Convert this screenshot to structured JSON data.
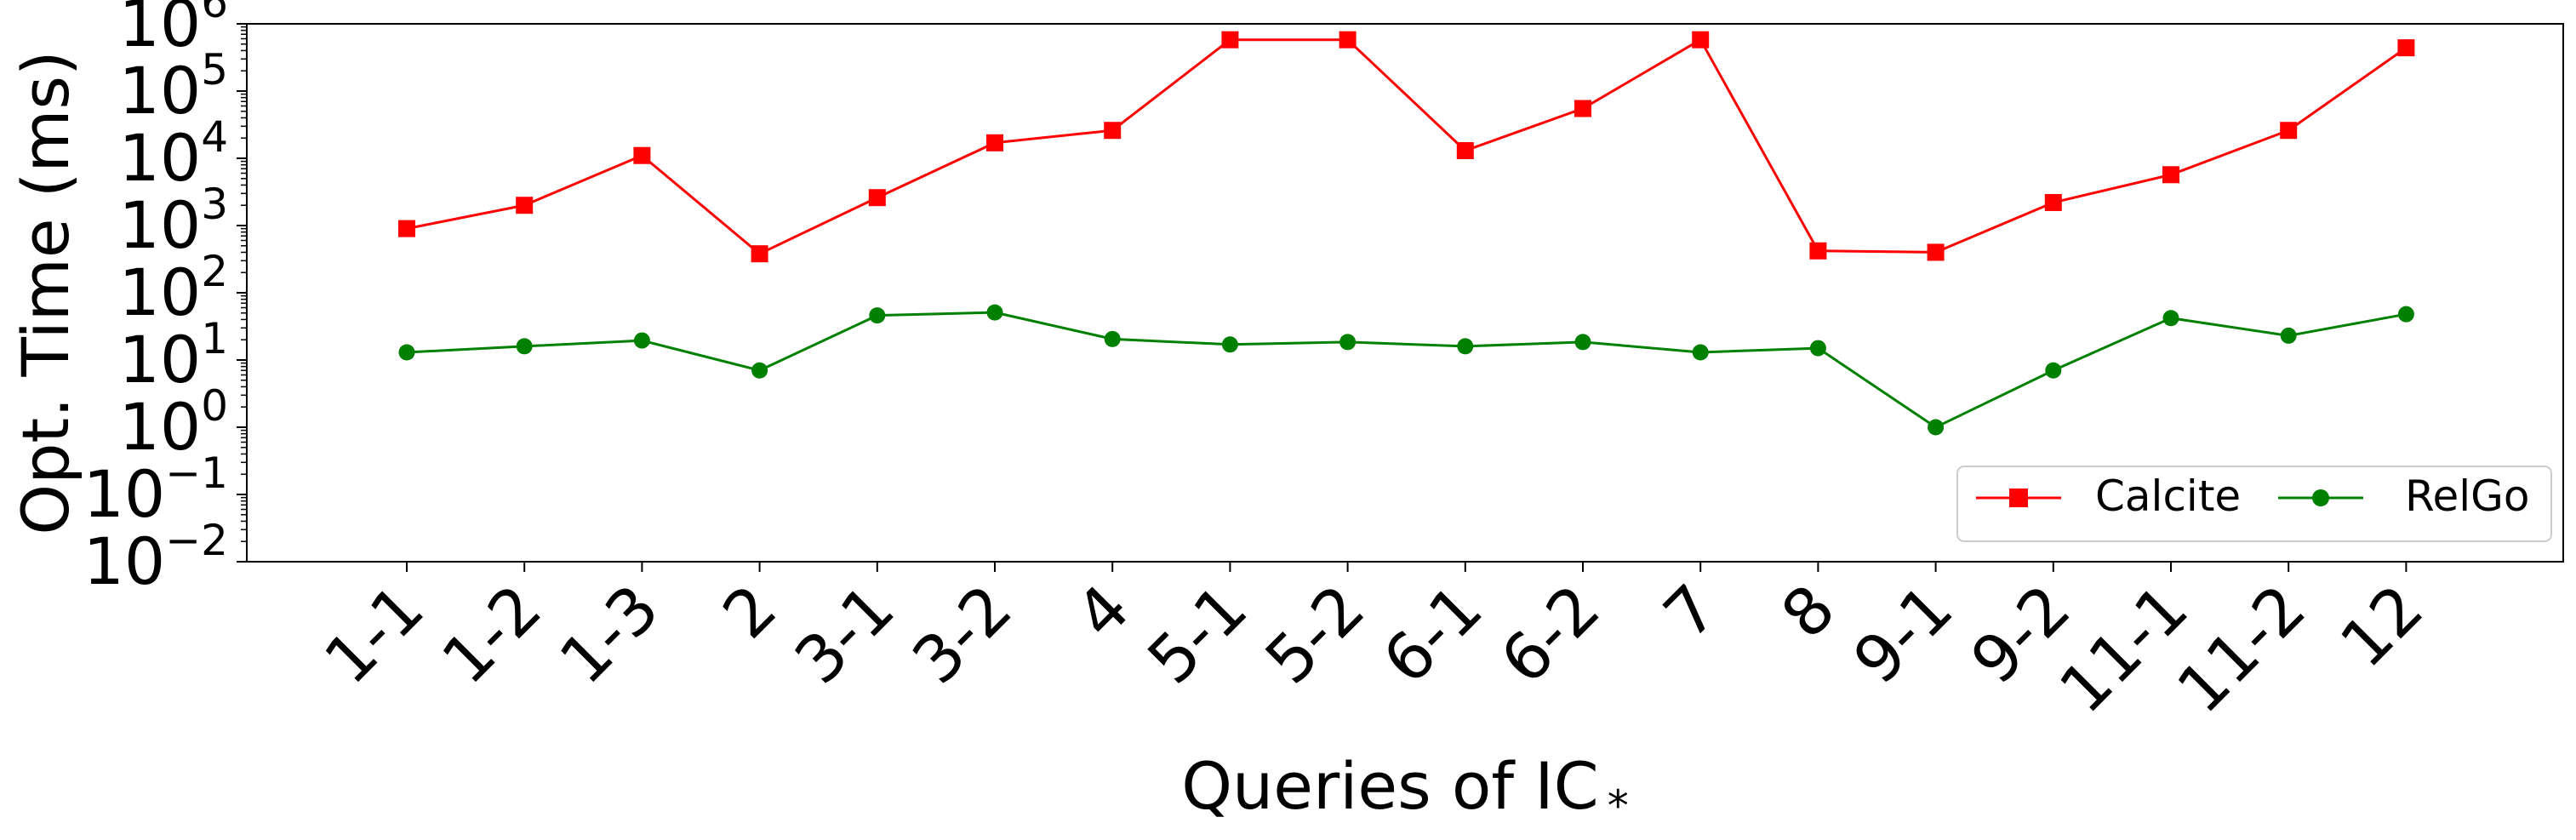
{
  "chart_data": {
    "type": "line",
    "title": "",
    "xlabel": "Queries of IC",
    "xlabel_sub": "*",
    "ylabel": "Opt. Time (ms)",
    "yscale": "log",
    "ylim": [
      0.01,
      1000000
    ],
    "yticks": [
      {
        "value": 0.01,
        "base": "10",
        "exp": "−2"
      },
      {
        "value": 0.1,
        "base": "10",
        "exp": "−1"
      },
      {
        "value": 1,
        "base": "10",
        "exp": "0"
      },
      {
        "value": 10,
        "base": "10",
        "exp": "1"
      },
      {
        "value": 100,
        "base": "10",
        "exp": "2"
      },
      {
        "value": 1000,
        "base": "10",
        "exp": "3"
      },
      {
        "value": 10000,
        "base": "10",
        "exp": "4"
      },
      {
        "value": 100000,
        "base": "10",
        "exp": "5"
      },
      {
        "value": 1000000,
        "base": "10",
        "exp": "6"
      }
    ],
    "categories": [
      "1-1",
      "1-2",
      "1-3",
      "2",
      "3-1",
      "3-2",
      "4",
      "5-1",
      "5-2",
      "6-1",
      "6-2",
      "7",
      "8",
      "9-1",
      "9-2",
      "11-1",
      "11-2",
      "12"
    ],
    "series": [
      {
        "name": "Calcite",
        "color": "#ff0000",
        "marker": "square",
        "values": [
          900,
          2000,
          11000,
          380,
          2600,
          17000,
          26000,
          580000,
          580000,
          13000,
          55000,
          580000,
          420,
          400,
          2200,
          5700,
          26000,
          440000
        ]
      },
      {
        "name": "RelGo",
        "color": "#008000",
        "marker": "circle",
        "values": [
          13,
          16,
          19.5,
          7,
          46,
          51,
          20.5,
          17,
          18.5,
          16,
          18.5,
          13,
          15,
          1,
          7,
          42,
          23,
          48
        ]
      }
    ],
    "legend": {
      "position": "lower-right",
      "columns": 2
    },
    "grid": false
  }
}
